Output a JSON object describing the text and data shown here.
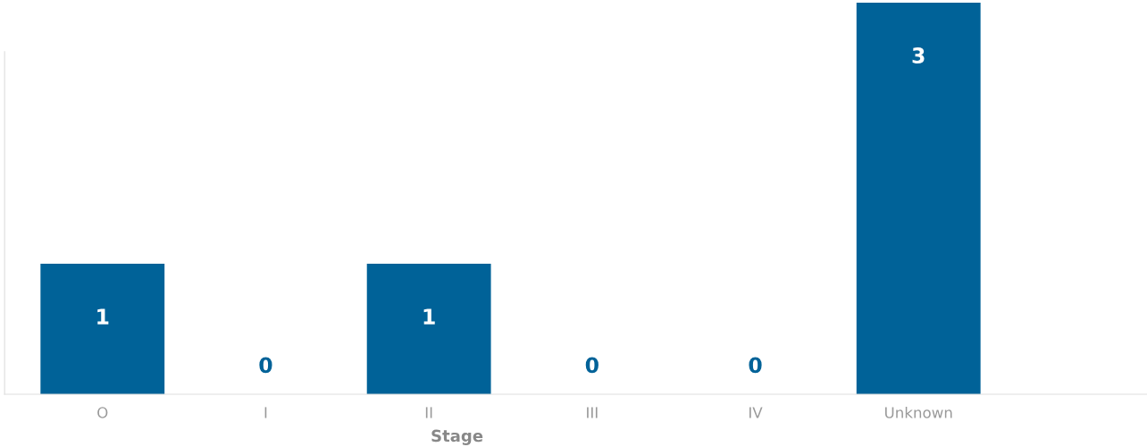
{
  "chart_data": {
    "type": "bar",
    "xlabel": "Stage",
    "categories": [
      "O",
      "I",
      "II",
      "III",
      "IV",
      "Unknown",
      null
    ],
    "values": [
      1,
      0,
      1,
      0,
      0,
      3,
      null
    ],
    "color": "#006298",
    "data_labels": true,
    "grid": false,
    "legend": false
  }
}
